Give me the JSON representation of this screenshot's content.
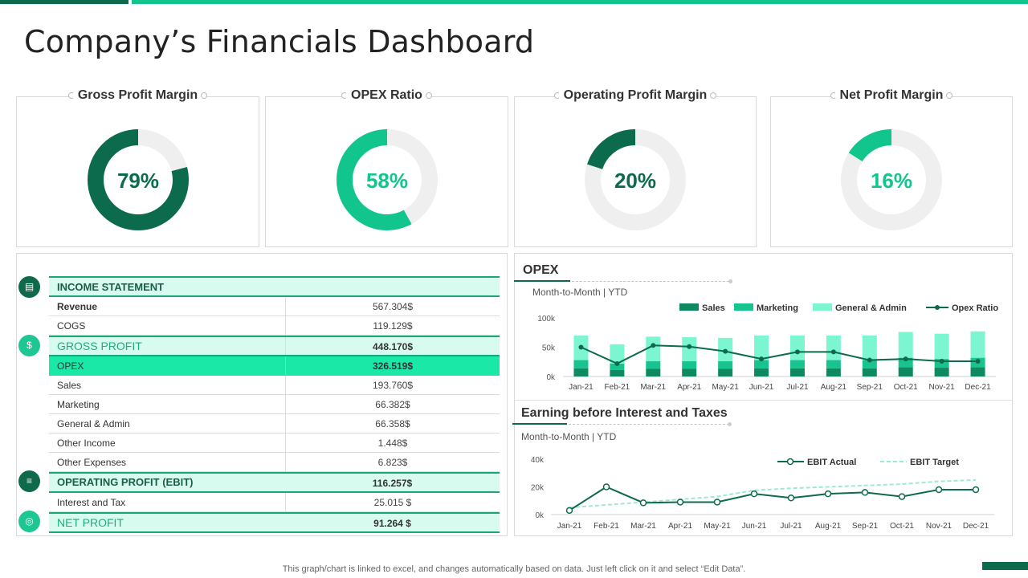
{
  "title": "Company’s Financials Dashboard",
  "kpis": [
    {
      "label": "Gross Profit Margin",
      "value": 79,
      "display": "79%",
      "color": "#0d6b4d",
      "text_color": "#0d6b4d"
    },
    {
      "label": "OPEX Ratio",
      "value": 58,
      "display": "58%",
      "color": "#12c58d",
      "text_color": "#12c58d"
    },
    {
      "label": "Operating Profit Margin",
      "value": 20,
      "display": "20%",
      "color": "#0d6b4d",
      "text_color": "#0d6b4d"
    },
    {
      "label": "Net Profit Margin",
      "value": 16,
      "display": "16%",
      "color": "#12c58d",
      "text_color": "#12c58d"
    }
  ],
  "income_statement": {
    "header": "INCOME  STATEMENT",
    "rows": [
      {
        "label": "Revenue",
        "value": "567.304$"
      },
      {
        "label": "COGS",
        "value": "119.129$"
      },
      {
        "label": "GROSS PROFIT",
        "value": "448.170$"
      },
      {
        "label": "OPEX",
        "value": "326.519$"
      },
      {
        "label": "Sales",
        "value": "193.760$"
      },
      {
        "label": "Marketing",
        "value": "66.382$"
      },
      {
        "label": "General & Admin",
        "value": "66.358$"
      },
      {
        "label": "Other Income",
        "value": "1.448$"
      },
      {
        "label": "Other Expenses",
        "value": "6.823$"
      },
      {
        "label": "OPERATING  PROFIT (EBIT)",
        "value": "116.257$"
      },
      {
        "label": "Interest and Tax",
        "value": "25.015 $"
      },
      {
        "label": "NET PROFIT",
        "value": "91.264 $"
      }
    ]
  },
  "opex_panel": {
    "heading": "OPEX",
    "sub": "Month-to-Month  | YTD"
  },
  "ebit_panel": {
    "heading": "Earning before Interest  and Taxes",
    "sub": "Month-to-Month  | YTD"
  },
  "footnote": "This graph/chart is linked to excel,  and changes automatically based on data. Just left click on it and select “Edit Data”.",
  "chart_data": [
    {
      "type": "bar",
      "title": "OPEX",
      "stacked": true,
      "categories": [
        "Jan-21",
        "Feb-21",
        "Mar-21",
        "Apr-21",
        "May-21",
        "Jun-21",
        "Jul-21",
        "Aug-21",
        "Sep-21",
        "Oct-21",
        "Nov-21",
        "Dec-21"
      ],
      "series": [
        {
          "name": "Sales",
          "kind": "bar",
          "color": "#0f8a5f",
          "values": [
            14,
            11,
            13,
            13,
            13,
            14,
            14,
            14,
            14,
            16,
            15,
            16
          ]
        },
        {
          "name": "Marketing",
          "kind": "bar",
          "color": "#17c38f",
          "values": [
            14,
            11,
            13,
            13,
            13,
            14,
            14,
            14,
            14,
            16,
            15,
            16
          ]
        },
        {
          "name": "General & Admin",
          "kind": "bar",
          "color": "#7cf5d1",
          "values": [
            42,
            33,
            42,
            41,
            40,
            42,
            42,
            42,
            42,
            44,
            43,
            45
          ]
        },
        {
          "name": "Opex Ratio",
          "kind": "line",
          "color": "#0d6b4d",
          "values": [
            50,
            22,
            53,
            51,
            43,
            30,
            42,
            42,
            28,
            30,
            26,
            26
          ]
        }
      ],
      "yticks": [
        "0k",
        "50k",
        "100k"
      ],
      "ylim": [
        0,
        100
      ],
      "legend": "top-right"
    },
    {
      "type": "line",
      "title": "Earning before Interest  and Taxes",
      "categories": [
        "Jan-21",
        "Feb-21",
        "Mar-21",
        "Apr-21",
        "May-21",
        "Jun-21",
        "Jul-21",
        "Aug-21",
        "Sep-21",
        "Oct-21",
        "Nov-21",
        "Dec-21"
      ],
      "series": [
        {
          "name": "EBIT Actual",
          "style": "solid",
          "color": "#0d6b4d",
          "values": [
            3,
            20,
            8.5,
            9,
            9,
            15,
            12,
            15,
            16,
            13,
            18,
            18
          ]
        },
        {
          "name": "EBIT Target",
          "style": "dashed",
          "color": "#9fe9cf",
          "values": [
            5,
            7,
            9,
            11,
            13,
            17.5,
            19,
            20,
            21,
            22,
            24,
            25
          ]
        }
      ],
      "yticks": [
        "0k",
        "20k",
        "40k"
      ],
      "ylim": [
        0,
        40
      ],
      "legend": "top-right"
    }
  ]
}
